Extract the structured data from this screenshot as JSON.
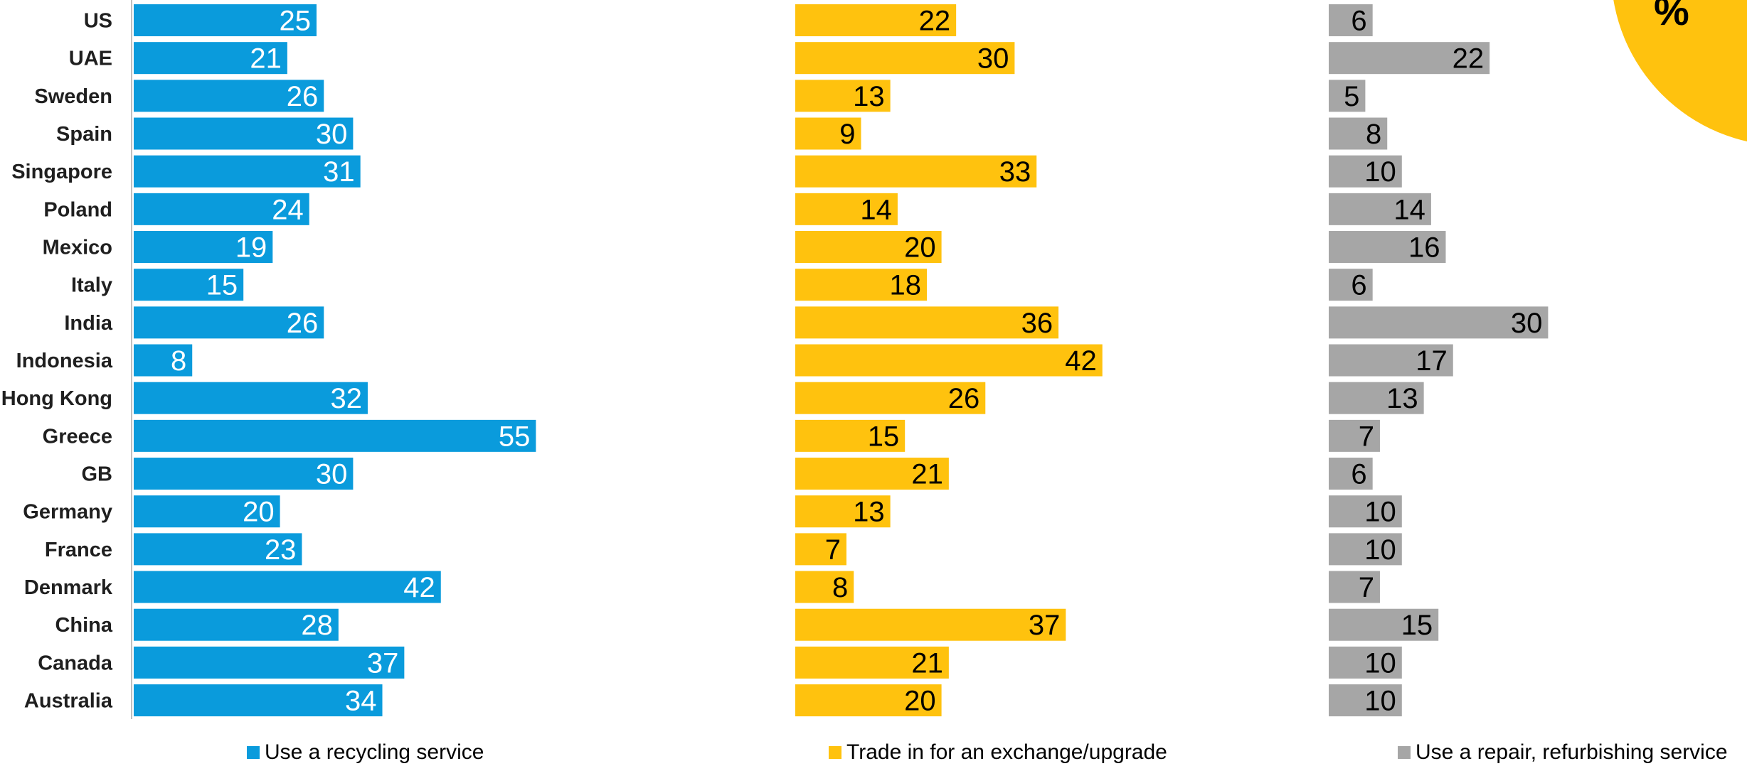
{
  "badge": {
    "text": "%",
    "color": "#FFC20E"
  },
  "chart_data": {
    "type": "bar",
    "orientation": "horizontal",
    "layout": "three side-by-side panels sharing one category axis",
    "categories": [
      "US",
      "UAE",
      "Sweden",
      "Spain",
      "Singapore",
      "Poland",
      "Mexico",
      "Italy",
      "India",
      "Indonesia",
      "Hong Kong",
      "Greece",
      "GB",
      "Germany",
      "France",
      "Denmark",
      "China",
      "Canada",
      "Australia"
    ],
    "series": [
      {
        "name": "Use a recycling service",
        "color": "#0A9BDC",
        "label_color": "#FFFFFF",
        "values": [
          25,
          21,
          26,
          30,
          31,
          24,
          19,
          15,
          26,
          8,
          32,
          55,
          30,
          20,
          23,
          42,
          28,
          37,
          34
        ]
      },
      {
        "name": "Trade in for an exchange/upgrade",
        "color": "#FFC20E",
        "label_color": "#000000",
        "values": [
          22,
          30,
          13,
          9,
          33,
          14,
          20,
          18,
          36,
          42,
          26,
          15,
          21,
          13,
          7,
          8,
          37,
          21,
          20
        ]
      },
      {
        "name": "Use a repair, refurbishing service",
        "color": "#A6A6A6",
        "label_color": "#000000",
        "values": [
          6,
          22,
          5,
          8,
          10,
          14,
          16,
          6,
          30,
          17,
          13,
          7,
          6,
          10,
          10,
          7,
          15,
          10,
          10
        ]
      }
    ],
    "data_labels": "inside end",
    "legend": "bottom",
    "grid": false
  }
}
